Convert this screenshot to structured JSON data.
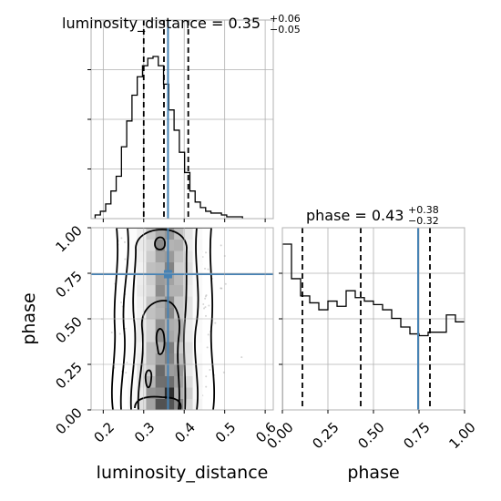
{
  "chart_data": [
    {
      "type": "histogram",
      "panel": "top-left",
      "title_param": "luminosity_distance",
      "title_value": "0.35",
      "title_plus": "+0.06",
      "title_minus": "−0.05",
      "xlim": [
        0.17,
        0.62
      ],
      "bins": [
        0.18,
        0.193,
        0.206,
        0.219,
        0.232,
        0.245,
        0.258,
        0.271,
        0.284,
        0.297,
        0.31,
        0.323,
        0.336,
        0.349,
        0.362,
        0.375,
        0.388,
        0.401,
        0.414,
        0.427,
        0.44,
        0.453,
        0.466,
        0.479,
        0.492,
        0.505,
        0.518,
        0.531,
        0.544
      ],
      "values": [
        1,
        3,
        7,
        14,
        22,
        38,
        52,
        66,
        76,
        82,
        86,
        87,
        82,
        72,
        58,
        47,
        35,
        24,
        14,
        8,
        5,
        3,
        2,
        2,
        1,
        0,
        0,
        0
      ],
      "quantiles": [
        0.3,
        0.35,
        0.41
      ],
      "truth": 0.36,
      "grid": true
    },
    {
      "type": "contour-2d",
      "panel": "bottom-left",
      "xlabel": "luminosity_distance",
      "ylabel": "phase",
      "xlim": [
        0.17,
        0.62
      ],
      "ylim": [
        0.0,
        1.0
      ],
      "xticks": [
        "0.2",
        "0.3",
        "0.4",
        "0.5",
        "0.6"
      ],
      "yticks": [
        "0.00",
        "0.25",
        "0.50",
        "0.75",
        "1.00"
      ],
      "truth": [
        0.36,
        0.745
      ],
      "grid": true
    },
    {
      "type": "histogram",
      "panel": "bottom-right",
      "title_param": "phase",
      "title_value": "0.43",
      "title_plus": "+0.38",
      "title_minus": "−0.32",
      "xlabel": "phase",
      "xlim": [
        0.0,
        1.0
      ],
      "xticks": [
        "0.00",
        "0.25",
        "0.50",
        "0.75",
        "1.00"
      ],
      "bins": [
        0.0,
        0.05,
        0.1,
        0.15,
        0.2,
        0.25,
        0.3,
        0.35,
        0.4,
        0.45,
        0.5,
        0.55,
        0.6,
        0.65,
        0.7,
        0.75,
        0.8,
        0.85,
        0.9,
        0.95,
        1.0
      ],
      "values": [
        96,
        76,
        66,
        62,
        58,
        63,
        60,
        69,
        65,
        63,
        61,
        58,
        53,
        48,
        44,
        43,
        45,
        45,
        55,
        51
      ],
      "quantiles": [
        0.11,
        0.43,
        0.81
      ],
      "truth": 0.745,
      "grid": true
    }
  ],
  "colors": {
    "truth": "#4682b4",
    "hist": "#000000",
    "grid": "#b0b0b0"
  }
}
